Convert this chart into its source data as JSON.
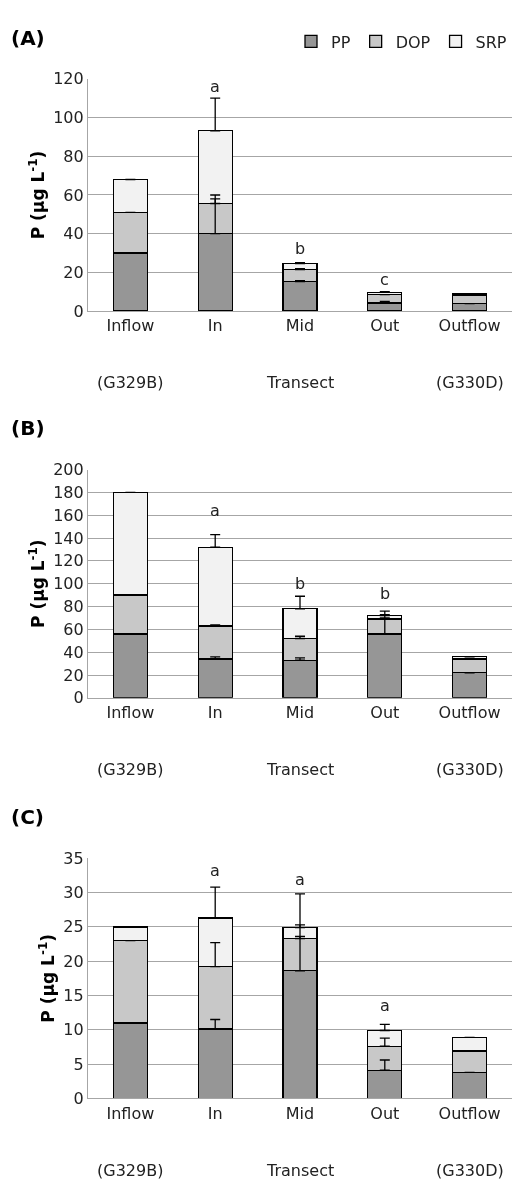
{
  "chart_data": [
    {
      "type": "bar",
      "title": "(A)",
      "ylabel": "P (μg L$^{-1}$)",
      "stacked": true,
      "grid": "y",
      "legend": "top right",
      "ylim": [
        0,
        120
      ],
      "yticks": [
        0,
        20,
        40,
        60,
        80,
        100,
        120
      ],
      "categories": [
        "Inflow",
        "In",
        "Mid",
        "Out",
        "Outflow"
      ],
      "series": [
        {
          "name": "PP",
          "color": "#969696",
          "values": [
            30,
            40,
            15.3,
            4.2,
            3.9
          ],
          "errors": [
            null,
            [
              40,
              58
            ],
            [
              15.3,
              15.8
            ],
            [
              4.2,
              5
            ],
            null
          ]
        },
        {
          "name": "DOP",
          "color": "#c8c8c8",
          "values": [
            21,
            15.6,
            6.2,
            4.3,
            4.2
          ],
          "errors": [
            null,
            [
              55.6,
              60
            ],
            [
              21.5,
              22
            ],
            null,
            null
          ]
        },
        {
          "name": "SRP",
          "color": "#f2f2f2",
          "values": [
            17,
            37.6,
            3.1,
            1.3,
            0.7
          ],
          "errors": [
            null,
            [
              93.2,
              110
            ],
            [
              24.6,
              25
            ],
            [
              9.8,
              10
            ],
            null
          ]
        }
      ],
      "annotations": [
        "a",
        "b",
        "c",
        "(G329B)",
        "Transect",
        "(G330D)"
      ]
    },
    {
      "type": "bar",
      "title": "(B)",
      "ylabel": "P (μg L$^{-1}$)",
      "stacked": true,
      "grid": "y",
      "ylim": [
        0,
        200
      ],
      "yticks": [
        0,
        20,
        40,
        60,
        80,
        100,
        120,
        140,
        160,
        180,
        200
      ],
      "categories": [
        "Inflow",
        "In",
        "Mid",
        "Out",
        "Outflow"
      ],
      "series": [
        {
          "color": "#969696",
          "values": [
            56,
            34,
            33,
            56,
            22
          ],
          "errors": [
            null,
            [
              34,
              36
            ],
            [
              33,
              35
            ],
            [
              56,
              70
            ],
            null
          ]
        },
        {
          "color": "#c8c8c8",
          "values": [
            34,
            29,
            19,
            13,
            12
          ],
          "errors": [
            null,
            [
              63,
              64
            ],
            [
              52,
              54
            ],
            [
              69,
              73
            ],
            null
          ]
        },
        {
          "color": "#f2f2f2",
          "values": [
            90,
            69,
            26,
            3,
            2
          ],
          "errors": [
            null,
            [
              132,
              143
            ],
            [
              78,
              89
            ],
            [
              72,
              76
            ],
            null
          ]
        }
      ],
      "annotations": [
        "a",
        "b",
        "b",
        "(G329B)",
        "Transect",
        "(G330D)"
      ]
    },
    {
      "type": "bar",
      "title": "(C)",
      "ylabel": "P (μg L$^{-1}$)",
      "stacked": true,
      "grid": "y",
      "ylim": [
        0,
        35
      ],
      "yticks": [
        0,
        5,
        10,
        15,
        20,
        25,
        30,
        35
      ],
      "categories": [
        "Inflow",
        "In",
        "Mid",
        "Out",
        "Outflow"
      ],
      "series": [
        {
          "color": "#969696",
          "values": [
            11,
            10.1,
            18.6,
            4.1,
            3.8
          ],
          "errors": [
            null,
            [
              10.1,
              11.5
            ],
            [
              18.6,
              23.6
            ],
            [
              4.1,
              5.6
            ],
            null
          ]
        },
        {
          "color": "#c8c8c8",
          "values": [
            12,
            9.1,
            4.7,
            3.5,
            3.1
          ],
          "errors": [
            null,
            [
              19.2,
              22.7
            ],
            [
              23.3,
              25.3
            ],
            [
              7.6,
              8.8
            ],
            null
          ]
        },
        {
          "color": "#f2f2f2",
          "values": [
            2,
            7.1,
            1.6,
            2.3,
            2
          ],
          "errors": [
            null,
            [
              26.3,
              30.8
            ],
            [
              24.9,
              29.8
            ],
            [
              9.9,
              10.8
            ],
            null
          ]
        }
      ],
      "annotations": [
        "a",
        "a",
        "a",
        "(G329B)",
        "Transect",
        "(G330D)"
      ]
    }
  ]
}
